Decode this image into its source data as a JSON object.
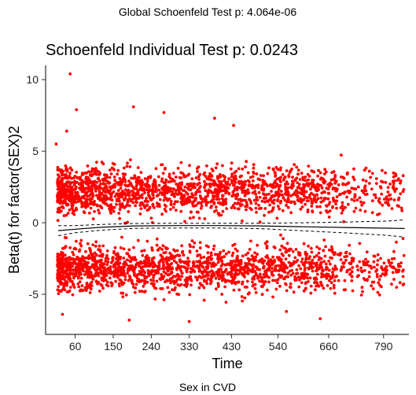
{
  "header": {
    "global_title": "Global Schoenfeld Test p: 4.064e-06",
    "caption": "Sex in CVD"
  },
  "chart_data": {
    "type": "scatter",
    "title": "Schoenfeld Individual Test p: 0.0243",
    "xlabel": "Time",
    "ylabel": "Beta(t) for factor(SEX)2",
    "xlim": [
      -10,
      850
    ],
    "ylim": [
      -7.8,
      11
    ],
    "x_ticks": [
      60,
      150,
      240,
      330,
      430,
      540,
      660,
      790
    ],
    "x_tick_labels": [
      "60",
      "150",
      "240",
      "330",
      "430",
      "540",
      "660",
      "790"
    ],
    "y_ticks": [
      -5,
      0,
      5,
      10
    ],
    "y_tick_labels": [
      "-5",
      "0",
      "5",
      "10"
    ],
    "grid": false,
    "point_color": "#ff0000",
    "clusters": [
      {
        "center_y": 2.2,
        "spread_y": 1.1,
        "x_range": [
          18,
          840
        ]
      },
      {
        "center_y": -3.2,
        "spread_y": 1.1,
        "x_range": [
          18,
          840
        ]
      }
    ],
    "notable_points": [
      {
        "x": 48,
        "y": 10.4
      },
      {
        "x": 63,
        "y": 7.9
      },
      {
        "x": 40,
        "y": 6.4
      },
      {
        "x": 198,
        "y": 8.1
      },
      {
        "x": 270,
        "y": 7.7
      },
      {
        "x": 390,
        "y": 7.3
      },
      {
        "x": 435,
        "y": 6.8
      },
      {
        "x": 15,
        "y": 5.5
      },
      {
        "x": 188,
        "y": -6.8
      },
      {
        "x": 330,
        "y": -6.9
      },
      {
        "x": 640,
        "y": -6.7
      },
      {
        "x": 30,
        "y": -6.4
      },
      {
        "x": 560,
        "y": -6.2
      },
      {
        "x": 836,
        "y": -1.1
      }
    ],
    "smooth_fit": {
      "x": [
        20,
        60,
        120,
        200,
        300,
        400,
        500,
        600,
        700,
        800,
        840
      ],
      "y": [
        -0.55,
        -0.45,
        -0.32,
        -0.22,
        -0.2,
        -0.2,
        -0.22,
        -0.28,
        -0.33,
        -0.38,
        -0.4
      ],
      "ci_upper": [
        -0.2,
        -0.2,
        -0.12,
        -0.05,
        -0.03,
        -0.03,
        -0.03,
        0.0,
        0.05,
        0.12,
        0.2
      ],
      "ci_lower": [
        -0.9,
        -0.7,
        -0.52,
        -0.39,
        -0.37,
        -0.37,
        -0.41,
        -0.56,
        -0.71,
        -0.88,
        -1.0
      ]
    }
  }
}
